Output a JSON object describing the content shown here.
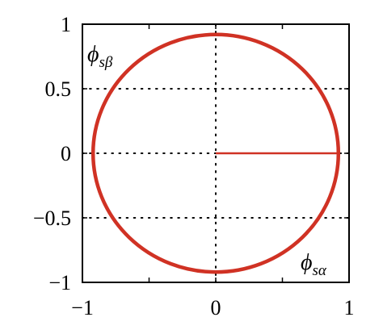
{
  "chart_data": {
    "type": "line",
    "title": "",
    "xlabel": "ϕsα",
    "ylabel": "ϕsβ",
    "xlim": [
      -1,
      1
    ],
    "ylim": [
      -1,
      1
    ],
    "grid": "dotted at 0 and ±0.5",
    "xticks": [
      "−1",
      "0",
      "1"
    ],
    "yticks": [
      "1",
      "0.5",
      "0",
      "−0.5",
      "−1"
    ],
    "annotations": [
      {
        "symbol": "ϕ",
        "sub": "sβ",
        "placement": "top-left"
      },
      {
        "symbol": "ϕ",
        "sub": "sα",
        "placement": "bottom-right"
      }
    ],
    "series": [
      {
        "kind": "circle",
        "center": [
          0,
          0
        ],
        "radius": 0.92,
        "color": "#d03224"
      },
      {
        "kind": "segment",
        "x": [
          0,
          0.92
        ],
        "y": [
          0,
          0
        ],
        "color": "#d03224"
      }
    ]
  }
}
